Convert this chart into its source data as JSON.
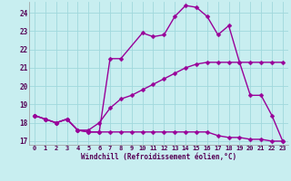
{
  "background_color": "#c8eef0",
  "grid_color": "#a0d8dc",
  "line_color": "#990099",
  "marker": "D",
  "markersize": 2.5,
  "linewidth": 1.0,
  "xlim": [
    -0.5,
    23.5
  ],
  "ylim": [
    16.8,
    24.6
  ],
  "yticks": [
    17,
    18,
    19,
    20,
    21,
    22,
    23,
    24
  ],
  "xticks": [
    0,
    1,
    2,
    3,
    4,
    5,
    6,
    7,
    8,
    9,
    10,
    11,
    12,
    13,
    14,
    15,
    16,
    17,
    18,
    19,
    20,
    21,
    22,
    23
  ],
  "xlabel": "Windchill (Refroidissement éolien,°C)",
  "series": [
    {
      "x": [
        0,
        1,
        2,
        3,
        4,
        5,
        6,
        7,
        8,
        10,
        11,
        12,
        13,
        14,
        15,
        16,
        17,
        18,
        19,
        20,
        21,
        22,
        23
      ],
      "y": [
        18.4,
        18.2,
        18.0,
        18.2,
        17.6,
        17.5,
        17.5,
        21.5,
        21.5,
        22.9,
        22.7,
        22.8,
        23.8,
        24.4,
        24.3,
        23.8,
        22.8,
        23.3,
        21.3,
        19.5,
        19.5,
        18.4,
        17.0
      ]
    },
    {
      "x": [
        0,
        1,
        2,
        3,
        4,
        5,
        6,
        7,
        8,
        9,
        10,
        11,
        12,
        13,
        14,
        15,
        16,
        17,
        18,
        19,
        20,
        21,
        22,
        23
      ],
      "y": [
        18.4,
        18.2,
        18.0,
        18.2,
        17.6,
        17.6,
        18.0,
        18.8,
        19.3,
        19.5,
        19.8,
        20.1,
        20.4,
        20.7,
        21.0,
        21.2,
        21.3,
        21.3,
        21.3,
        21.3,
        21.3,
        21.3,
        21.3,
        21.3
      ]
    },
    {
      "x": [
        0,
        1,
        2,
        3,
        4,
        5,
        6,
        7,
        8,
        9,
        10,
        11,
        12,
        13,
        14,
        15,
        16,
        17,
        18,
        19,
        20,
        21,
        22,
        23
      ],
      "y": [
        18.4,
        18.2,
        18.0,
        18.2,
        17.6,
        17.5,
        17.5,
        17.5,
        17.5,
        17.5,
        17.5,
        17.5,
        17.5,
        17.5,
        17.5,
        17.5,
        17.5,
        17.3,
        17.2,
        17.2,
        17.1,
        17.1,
        17.0,
        17.0
      ]
    }
  ]
}
